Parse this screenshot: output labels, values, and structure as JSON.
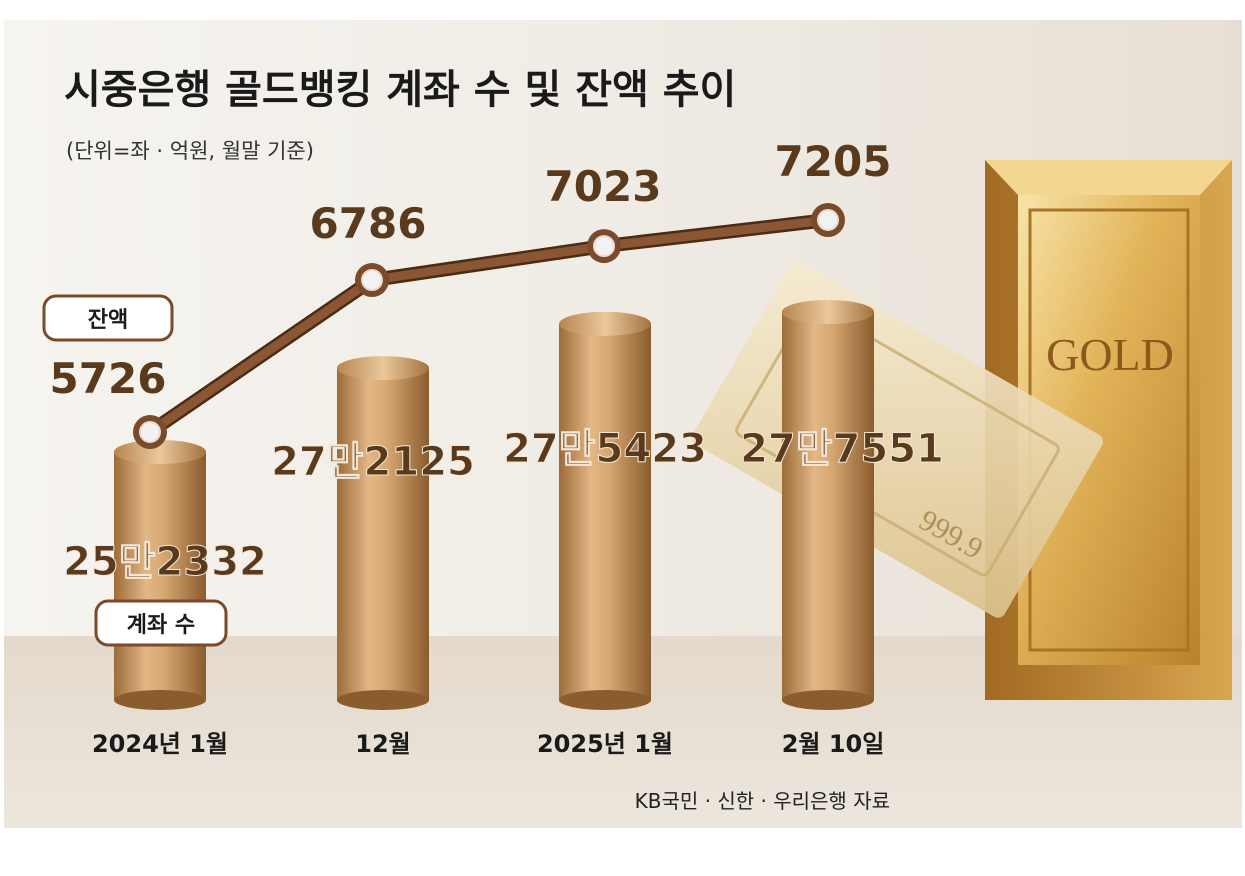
{
  "chart_data": {
    "type": "bar",
    "title": "시중은행 골드뱅킹 계좌 수 및 잔액 추이",
    "subtitle": "(단위=좌 · 억원, 월말 기준)",
    "source": "KB국민 · 신한 · 우리은행 자료",
    "categories": [
      "2024년 1월",
      "12월",
      "2025년 1월",
      "2월 10일"
    ],
    "series": [
      {
        "name": "계좌 수",
        "type": "bar",
        "values": [
          252332,
          272125,
          275423,
          277551
        ],
        "labels": [
          "25만2332",
          "27만2125",
          "27만5423",
          "27만7551"
        ]
      },
      {
        "name": "잔액",
        "type": "line",
        "values": [
          5726,
          6786,
          7023,
          7205
        ],
        "labels": [
          "5726",
          "6786",
          "7023",
          "7205"
        ]
      }
    ],
    "decoration": {
      "gold_bar_text": "GOLD",
      "gold_bar_purity": "999.9"
    },
    "colors": {
      "bar": "#c89a62",
      "bar_dark": "#8f6436",
      "line": "#7a4a2a",
      "label": "#5a3a1c",
      "title": "#1a1a1a",
      "background_top": "#f2efe9",
      "background_bottom": "#e3d8cb"
    }
  }
}
